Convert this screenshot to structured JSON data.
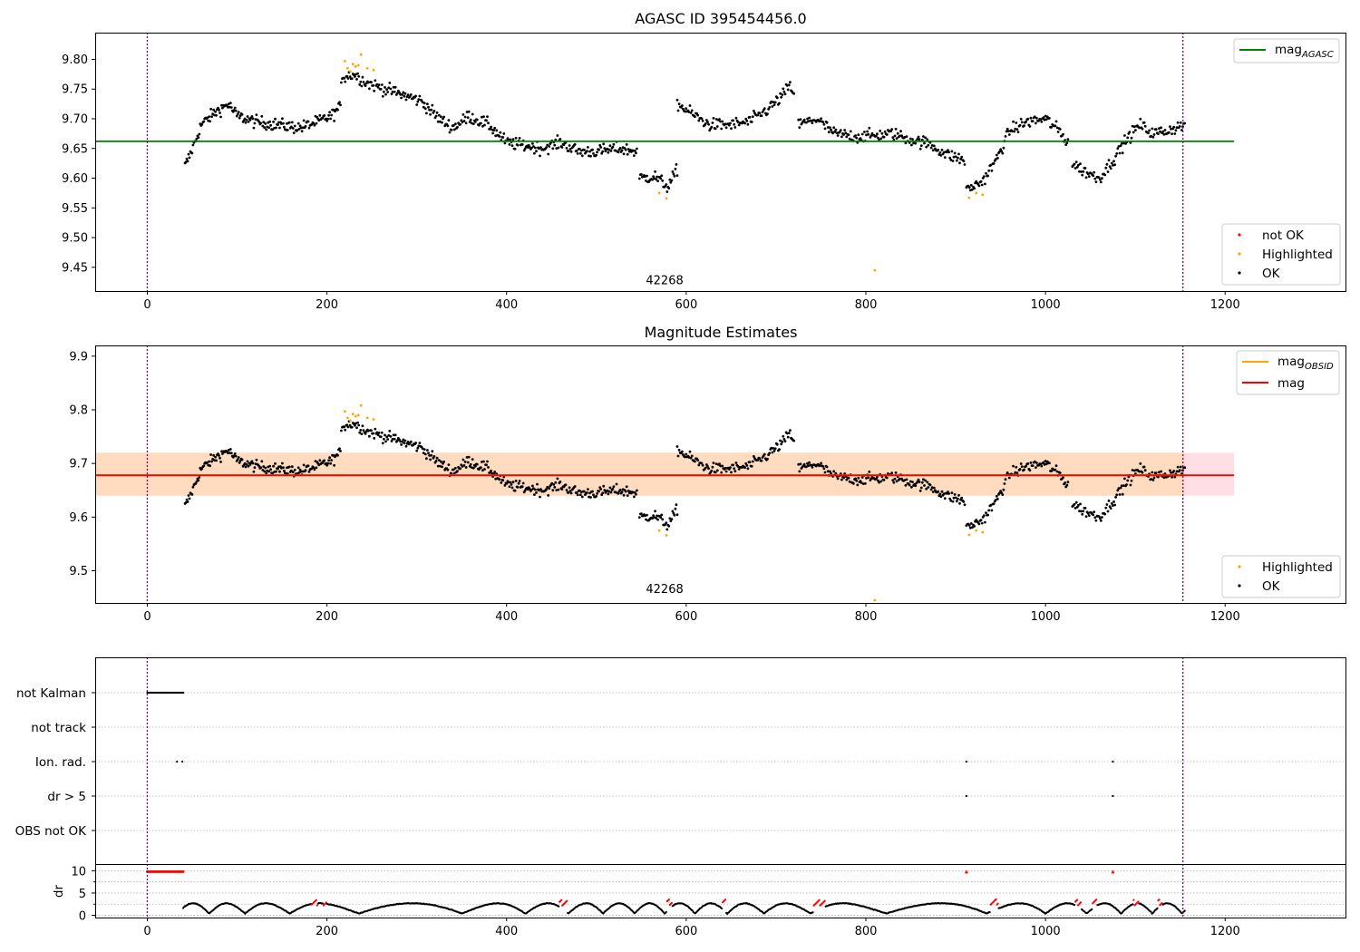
{
  "chart_data": [
    {
      "type": "scatter",
      "title": "AGASC ID 395454456.0",
      "xlim": [
        -58,
        1335
      ],
      "ylim": [
        9.41,
        9.845
      ],
      "xticks": [
        0,
        200,
        400,
        600,
        800,
        1000,
        1200
      ],
      "yticks": [
        9.45,
        9.5,
        9.55,
        9.6,
        9.65,
        9.7,
        9.75,
        9.8
      ],
      "vlines": [
        0,
        1153
      ],
      "annotation": {
        "text": "42268",
        "x": 576,
        "y": 9.415
      },
      "reference_line": {
        "name": "mag$_{AGASC}$",
        "label_main": "mag",
        "label_sub": "AGASC",
        "y": 9.662,
        "xrange": [
          -58,
          1210
        ],
        "color": "#008000"
      },
      "legend_lines_placement": "top-right",
      "legend_points_placement": "bottom-right",
      "series": [
        {
          "name": "not OK",
          "color": "#ff0000",
          "x": [],
          "y": []
        },
        {
          "name": "Highlighted",
          "color": "#ffa500",
          "x": [
            220,
            223,
            226,
            229,
            232,
            235,
            238,
            245,
            252,
            570,
            578,
            810,
            915,
            923,
            930
          ],
          "y": [
            9.797,
            9.785,
            9.78,
            9.792,
            9.788,
            9.79,
            9.808,
            9.785,
            9.782,
            9.575,
            9.566,
            9.445,
            9.567,
            9.575,
            9.572
          ]
        },
        {
          "name": "OK",
          "color": "#000000",
          "segments": [
            {
              "x0": 42,
              "x1": 215,
              "n": 175,
              "anchors": [
                [
                  42,
                  9.62
                ],
                [
                  50,
                  9.648
                ],
                [
                  60,
                  9.69
                ],
                [
                  75,
                  9.71
                ],
                [
                  90,
                  9.725
                ],
                [
                  100,
                  9.705
                ],
                [
                  120,
                  9.695
                ],
                [
                  145,
                  9.69
                ],
                [
                  170,
                  9.685
                ],
                [
                  190,
                  9.695
                ],
                [
                  205,
                  9.705
                ],
                [
                  215,
                  9.72
                ]
              ]
            },
            {
              "x0": 216,
              "x1": 355,
              "n": 130,
              "anchors": [
                [
                  216,
                  9.77
                ],
                [
                  230,
                  9.775
                ],
                [
                  245,
                  9.76
                ],
                [
                  265,
                  9.75
                ],
                [
                  285,
                  9.74
                ],
                [
                  305,
                  9.73
                ],
                [
                  325,
                  9.7
                ],
                [
                  340,
                  9.685
                ],
                [
                  355,
                  9.7
                ]
              ]
            },
            {
              "x0": 356,
              "x1": 545,
              "n": 185,
              "anchors": [
                [
                  356,
                  9.705
                ],
                [
                  380,
                  9.69
                ],
                [
                  400,
                  9.66
                ],
                [
                  420,
                  9.655
                ],
                [
                  440,
                  9.65
                ],
                [
                  460,
                  9.66
                ],
                [
                  480,
                  9.645
                ],
                [
                  500,
                  9.645
                ],
                [
                  525,
                  9.65
                ],
                [
                  545,
                  9.645
                ]
              ]
            },
            {
              "x0": 548,
              "x1": 590,
              "n": 42,
              "anchors": [
                [
                  548,
                  9.6
                ],
                [
                  565,
                  9.603
                ],
                [
                  580,
                  9.585
                ],
                [
                  590,
                  9.615
                ]
              ]
            },
            {
              "x0": 590,
              "x1": 720,
              "n": 120,
              "anchors": [
                [
                  590,
                  9.725
                ],
                [
                  605,
                  9.71
                ],
                [
                  625,
                  9.69
                ],
                [
                  650,
                  9.69
                ],
                [
                  670,
                  9.695
                ],
                [
                  690,
                  9.715
                ],
                [
                  705,
                  9.735
                ],
                [
                  715,
                  9.755
                ],
                [
                  720,
                  9.745
                ]
              ]
            },
            {
              "x0": 725,
              "x1": 910,
              "n": 170,
              "anchors": [
                [
                  725,
                  9.69
                ],
                [
                  745,
                  9.7
                ],
                [
                  765,
                  9.675
                ],
                [
                  790,
                  9.67
                ],
                [
                  810,
                  9.672
                ],
                [
                  830,
                  9.675
                ],
                [
                  850,
                  9.665
                ],
                [
                  870,
                  9.658
                ],
                [
                  890,
                  9.64
                ],
                [
                  910,
                  9.63
                ]
              ]
            },
            {
              "x0": 912,
              "x1": 1025,
              "n": 105,
              "anchors": [
                [
                  912,
                  9.58
                ],
                [
                  930,
                  9.595
                ],
                [
                  945,
                  9.63
                ],
                [
                  960,
                  9.68
                ],
                [
                  980,
                  9.695
                ],
                [
                  1000,
                  9.7
                ],
                [
                  1015,
                  9.68
                ],
                [
                  1025,
                  9.66
                ]
              ]
            },
            {
              "x0": 1030,
              "x1": 1155,
              "n": 115,
              "anchors": [
                [
                  1030,
                  9.625
                ],
                [
                  1045,
                  9.61
                ],
                [
                  1060,
                  9.6
                ],
                [
                  1075,
                  9.63
                ],
                [
                  1090,
                  9.665
                ],
                [
                  1105,
                  9.69
                ],
                [
                  1120,
                  9.675
                ],
                [
                  1135,
                  9.68
                ],
                [
                  1155,
                  9.69
                ]
              ]
            }
          ]
        }
      ]
    },
    {
      "type": "scatter",
      "title": "Magnitude Estimates",
      "xlim": [
        -58,
        1335
      ],
      "ylim": [
        9.44,
        9.92
      ],
      "xticks": [
        0,
        200,
        400,
        600,
        800,
        1000,
        1200
      ],
      "yticks": [
        9.5,
        9.6,
        9.7,
        9.8,
        9.9
      ],
      "vlines": [
        0,
        1153
      ],
      "annotation": {
        "text": "42268",
        "x": 576,
        "y": 9.445
      },
      "band_outer": {
        "y0": 9.64,
        "y1": 9.72,
        "xrange": [
          -58,
          1210
        ],
        "color": "#ffc0cb"
      },
      "band_inner": {
        "y0": 9.64,
        "y1": 9.72,
        "xrange": [
          -58,
          1155
        ],
        "color": "#ffdab9"
      },
      "reference_lines": [
        {
          "name": "mag$_{OBSID}$",
          "label_main": "mag",
          "label_sub": "OBSID",
          "y": 9.678,
          "xrange": [
            -58,
            1155
          ],
          "color": "#ffa500"
        },
        {
          "name": "mag",
          "label_main": "mag",
          "label_sub": "",
          "y": 9.678,
          "xrange": [
            -58,
            1210
          ],
          "color": "#ff0000"
        }
      ],
      "legend_lines_placement": "top-right",
      "legend_points_placement": "bottom-right",
      "series": [
        {
          "name": "Highlighted",
          "color": "#ffa500",
          "x": [
            220,
            223,
            226,
            229,
            232,
            235,
            238,
            245,
            252,
            570,
            578,
            810,
            915,
            923,
            930
          ],
          "y": [
            9.797,
            9.785,
            9.78,
            9.792,
            9.788,
            9.79,
            9.808,
            9.785,
            9.782,
            9.575,
            9.566,
            9.445,
            9.567,
            9.575,
            9.572
          ]
        },
        {
          "name": "OK",
          "color": "#000000",
          "same_as_panel": 0
        }
      ]
    },
    {
      "type": "scatter",
      "title": "",
      "xlim": [
        -58,
        1335
      ],
      "xticks": [
        0,
        200,
        400,
        600,
        800,
        1000,
        1200
      ],
      "vlines": [
        0,
        1153
      ],
      "flag_labels": [
        "not Kalman",
        "not track",
        "Ion. rad.",
        "dr > 5",
        "OBS not OK"
      ],
      "flags": {
        "not Kalman": {
          "x0": 0,
          "x1": 40,
          "n": 41
        },
        "not track": {
          "x": []
        },
        "Ion. rad.": {
          "x": [
            33,
            39,
            912,
            1075
          ]
        },
        "dr > 5": {
          "x": [
            912,
            1075
          ]
        },
        "OBS not OK": {
          "x": []
        }
      },
      "dr_panel": {
        "ylabel": "dr",
        "ylim": [
          -0.5,
          11.5
        ],
        "yticks": [
          0,
          5,
          10
        ],
        "red_high": {
          "x0": 0,
          "x1": 40,
          "n": 41,
          "y": 9.8,
          "extra_x": [
            912,
            1075
          ]
        },
        "black_track_x": [
          40,
          1155
        ],
        "red_segments": [
          [
            183,
            190
          ],
          [
            196,
            200
          ],
          [
            458,
            468
          ],
          [
            578,
            584
          ],
          [
            640,
            644
          ],
          [
            742,
            755
          ],
          [
            938,
            948
          ],
          [
            1033,
            1040
          ],
          [
            1052,
            1058
          ],
          [
            1098,
            1104
          ],
          [
            1125,
            1130
          ]
        ]
      }
    }
  ]
}
